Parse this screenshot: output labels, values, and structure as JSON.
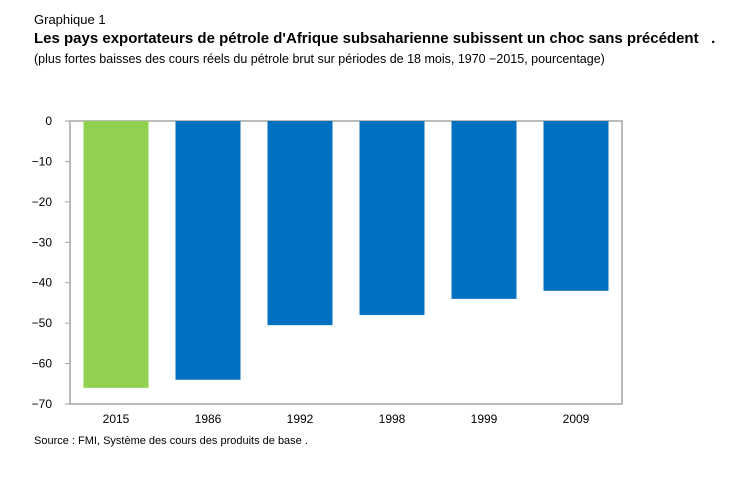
{
  "header": {
    "kicker": "Graphique 1",
    "title": "Les pays exportateurs de pétrole d'Afrique subsaharienne subissent un choc sans précédent   .",
    "subtitle": "(plus fortes baisses   des cours réels du pétrole brut sur périodes de                       18 mois, 1970      −2015, pourcentage)"
  },
  "source": "Source : FMI, Système des cours des produits de base                    .",
  "colors": {
    "highlight": "#92d050",
    "bars": "#0070c0",
    "axis": "#a6a6a6"
  },
  "chart_data": {
    "type": "bar",
    "categories": [
      "2015",
      "1986",
      "1992",
      "1998",
      "1999",
      "2009"
    ],
    "values": [
      -66,
      -64,
      -50.5,
      -48,
      -44,
      -42
    ],
    "ylim": [
      -70,
      0
    ],
    "yticks": [
      0,
      -10,
      -20,
      -30,
      -40,
      -50,
      -60,
      -70
    ],
    "ytick_labels": [
      "0",
      "−10",
      "−20",
      "−30",
      "−40",
      "−50",
      "−60",
      "−70"
    ],
    "highlight_index": 0,
    "grid": false
  }
}
